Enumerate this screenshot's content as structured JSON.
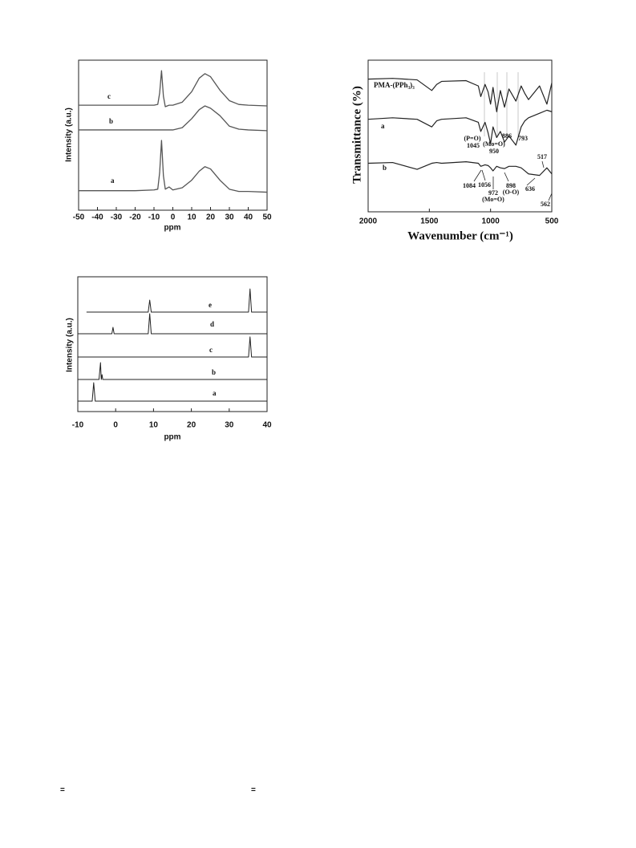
{
  "chart_data": [
    {
      "type": "line",
      "x_label": "ppm",
      "y_label": "Intensity (a.u.)",
      "xlim": [
        -50,
        50
      ],
      "xticks": [
        -50,
        -40,
        -30,
        -20,
        -10,
        0,
        10,
        20,
        30,
        40,
        50
      ],
      "ylim": [
        0,
        10
      ],
      "x": [
        -50,
        -40,
        -30,
        -20,
        -10,
        -8,
        -7,
        -6,
        -5,
        -4,
        -2,
        0,
        5,
        10,
        14,
        17,
        20,
        25,
        30,
        35,
        40,
        50
      ],
      "series": [
        {
          "name": "a",
          "color": "#555555",
          "values": [
            1.3,
            1.3,
            1.3,
            1.3,
            1.35,
            1.4,
            2.5,
            4.65,
            2.3,
            1.4,
            1.55,
            1.35,
            1.5,
            2.0,
            2.6,
            2.9,
            2.75,
            2.0,
            1.4,
            1.25,
            1.25,
            1.2
          ]
        },
        {
          "name": "b",
          "color": "#555555",
          "values": [
            5.35,
            5.35,
            5.35,
            5.35,
            5.35,
            5.35,
            5.35,
            5.35,
            5.35,
            5.35,
            5.35,
            5.35,
            5.5,
            6.1,
            6.7,
            6.95,
            6.8,
            6.3,
            5.6,
            5.4,
            5.35,
            5.3
          ]
        },
        {
          "name": "c",
          "color": "#555555",
          "values": [
            7.0,
            7.0,
            7.0,
            7.0,
            7.0,
            7.05,
            7.8,
            9.3,
            7.6,
            6.9,
            7.0,
            7.0,
            7.2,
            7.9,
            8.8,
            9.1,
            8.9,
            8.0,
            7.3,
            7.05,
            7.0,
            6.95
          ]
        }
      ]
    },
    {
      "type": "line",
      "x_label": "Wavenumber (cm⁻¹)",
      "y_label": "Transmittance (%)",
      "xlim": [
        2000,
        500
      ],
      "xticks": [
        2000,
        1500,
        1000,
        500
      ],
      "ylim": [
        0,
        10
      ],
      "x": [
        2000,
        1800,
        1600,
        1480,
        1440,
        1400,
        1200,
        1100,
        1080,
        1045,
        1020,
        1000,
        980,
        950,
        920,
        886,
        850,
        793,
        750,
        720,
        690,
        600,
        540,
        500
      ],
      "series": [
        {
          "name": "PMA-(PPh₃)₃",
          "color": "#222222",
          "values": [
            8.75,
            8.8,
            8.7,
            8.0,
            8.4,
            8.6,
            8.65,
            8.3,
            7.6,
            8.4,
            7.9,
            7.1,
            8.2,
            6.6,
            8.0,
            6.9,
            8.1,
            7.3,
            8.3,
            7.8,
            7.4,
            8.3,
            7.1,
            8.5
          ]
        },
        {
          "name": "a",
          "color": "#222222",
          "values": [
            6.1,
            6.2,
            6.1,
            5.6,
            6.0,
            6.1,
            6.2,
            5.9,
            5.3,
            5.9,
            5.2,
            4.5,
            5.6,
            4.9,
            5.3,
            4.6,
            5.0,
            4.4,
            5.6,
            6.0,
            6.2,
            6.5,
            6.7,
            6.6
          ]
        },
        {
          "name": "b",
          "color": "#222222",
          "values": [
            3.2,
            3.25,
            2.8,
            3.2,
            3.25,
            3.2,
            3.3,
            3.2,
            3.0,
            3.1,
            3.05,
            2.9,
            2.7,
            3.0,
            2.9,
            2.85,
            3.0,
            3.0,
            2.9,
            2.7,
            2.5,
            2.4,
            2.9,
            2.5
          ]
        }
      ],
      "annotations": [
        "(P=O)",
        "1045",
        "(Mo=O)",
        "950",
        "886",
        "793",
        "1084",
        "1056",
        "972",
        "(Mo=O)",
        "898",
        "(O-O)",
        "636",
        "517",
        "562"
      ]
    },
    {
      "type": "line",
      "x_label": "ppm",
      "y_label": "Intensity (a.u.)",
      "xlim": [
        -10,
        40
      ],
      "xticks": [
        -10,
        0,
        10,
        20,
        30,
        40
      ],
      "ylim": [
        0,
        10
      ],
      "x": [
        -10,
        -7.7,
        -6.2,
        -5.8,
        -5.4,
        -4.4,
        -4,
        -3.8,
        -3.6,
        -3.4,
        -1,
        -0.7,
        -0.4,
        8.6,
        9,
        9.4,
        35.1,
        35.5,
        35.9,
        40
      ],
      "series": [
        {
          "name": "a",
          "color": "#222222",
          "values": [
            0.77,
            0.77,
            0.77,
            2.14,
            0.77,
            0.77,
            0.77,
            0.77,
            0.77,
            0.77,
            0.77,
            0.77,
            0.77,
            0.77,
            0.77,
            0.77,
            0.77,
            0.77,
            0.77,
            0.77
          ]
        },
        {
          "name": "b",
          "color": "#222222",
          "values": [
            2.38,
            2.38,
            2.38,
            2.38,
            2.38,
            2.38,
            3.63,
            2.38,
            2.74,
            2.38,
            2.38,
            2.38,
            2.38,
            2.38,
            2.38,
            2.38,
            2.38,
            2.38,
            2.38,
            2.38
          ]
        },
        {
          "name": "c",
          "color": "#222222",
          "values": [
            4.05,
            4.05,
            4.05,
            4.05,
            4.05,
            4.05,
            4.05,
            4.05,
            4.05,
            4.05,
            4.05,
            4.05,
            4.05,
            4.05,
            4.05,
            4.05,
            4.05,
            5.54,
            4.05,
            4.05
          ]
        },
        {
          "name": "d",
          "color": "#222222",
          "values": [
            5.77,
            5.77,
            5.77,
            5.77,
            5.77,
            5.77,
            5.77,
            5.77,
            5.77,
            5.77,
            5.77,
            6.25,
            5.77,
            5.77,
            7.26,
            5.77,
            5.77,
            5.77,
            5.77,
            5.77
          ]
        },
        {
          "name": "e",
          "color": "#222222",
          "values": [
            null,
            7.38,
            7.38,
            7.38,
            7.38,
            7.38,
            7.38,
            7.38,
            7.38,
            7.38,
            7.38,
            7.38,
            7.38,
            7.38,
            8.27,
            7.38,
            7.38,
            9.1,
            7.38,
            7.38
          ]
        }
      ]
    }
  ],
  "page_marks": [
    "=",
    "="
  ]
}
